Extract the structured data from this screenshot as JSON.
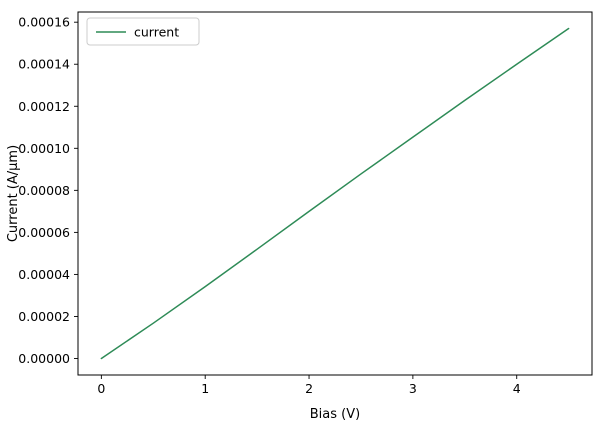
{
  "figure": {
    "background": "#ffffff"
  },
  "chart_data": {
    "type": "line",
    "title": "",
    "xlabel": "Bias (V)",
    "ylabel": "Current (A/μm)",
    "xlim": [
      -0.225,
      4.725
    ],
    "ylim": [
      -7.85e-06,
      0.00016485
    ],
    "xticks": [
      0,
      1,
      2,
      3,
      4
    ],
    "yticks": [
      0.0,
      2e-05,
      4e-05,
      6e-05,
      8e-05,
      0.0001,
      0.00012,
      0.00014,
      0.00016
    ],
    "ytick_decimals": 5,
    "grid": false,
    "legend": {
      "position": "upper left",
      "entries": [
        "current"
      ]
    },
    "series": [
      {
        "name": "current",
        "color": "#2e8b57",
        "x": [
          0,
          0.5,
          1.0,
          1.5,
          2.0,
          2.5,
          3.0,
          3.5,
          4.0,
          4.5
        ],
        "y": [
          0.0,
          1.68e-05,
          3.42e-05,
          5.2e-05,
          7e-05,
          8.78e-05,
          0.0001053,
          0.0001228,
          0.00014,
          0.000157
        ]
      }
    ],
    "colors": {
      "axes": "#000000",
      "legend_edge": "#cccccc",
      "legend_fill": "#ffffff"
    }
  }
}
